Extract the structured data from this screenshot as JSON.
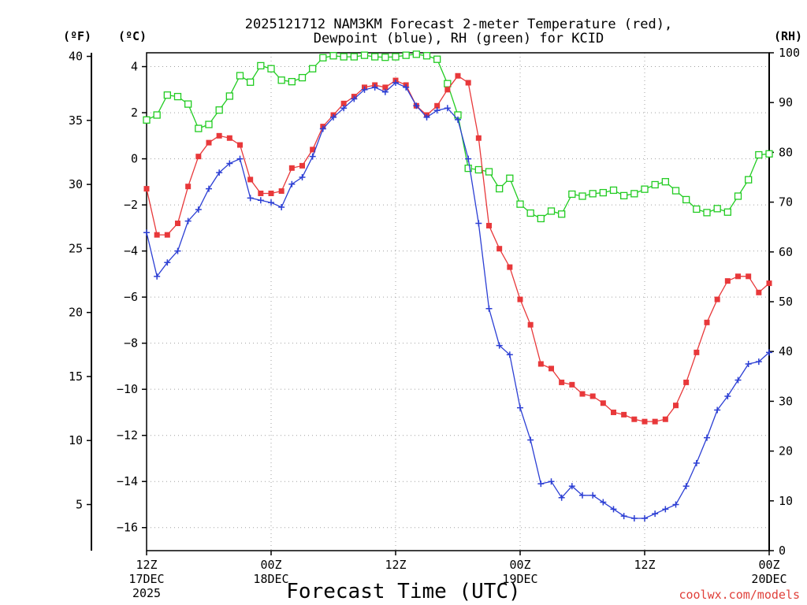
{
  "chart_data": {
    "type": "line",
    "title_line1": "2025121712 NAM3KM Forecast 2-meter Temperature (red),",
    "title_line2": "Dewpoint (blue), RH (green) for KCID",
    "unit_f": "(ºF)",
    "unit_c": "(ºC)",
    "unit_rh": "(RH)",
    "xlabel": "Forecast Time (UTC)",
    "credit": "coolwx.com/models",
    "x_range_hours": [
      0,
      60
    ],
    "y_c_range": [
      -17,
      4.6
    ],
    "y_rh_range": [
      0,
      100
    ],
    "y_f_range": [
      1.4,
      40.28
    ],
    "y_c_ticks": [
      "4",
      "2",
      "0",
      "-2",
      "-4",
      "-6",
      "-8",
      "-10",
      "-12",
      "-14",
      "-16"
    ],
    "y_c_tick_values": [
      4,
      2,
      0,
      -2,
      -4,
      -6,
      -8,
      -10,
      -12,
      -14,
      -16
    ],
    "y_f_ticks": [
      "40",
      "35",
      "30",
      "25",
      "20",
      "15",
      "10",
      "5"
    ],
    "y_f_tick_values": [
      40,
      35,
      30,
      25,
      20,
      15,
      10,
      5
    ],
    "y_rh_ticks": [
      "100",
      "90",
      "80",
      "70",
      "60",
      "50",
      "40",
      "30",
      "20",
      "10",
      "0"
    ],
    "y_rh_tick_values": [
      100,
      90,
      80,
      70,
      60,
      50,
      40,
      30,
      20,
      10,
      0
    ],
    "x_tick_hours": [
      0,
      12,
      24,
      36,
      48,
      60
    ],
    "x_ticks": [
      {
        "hour": 0,
        "line1": "12Z",
        "line2": "17DEC",
        "line3": "2025"
      },
      {
        "hour": 12,
        "line1": "00Z",
        "line2": "18DEC",
        "line3": ""
      },
      {
        "hour": 24,
        "line1": "12Z",
        "line2": "",
        "line3": ""
      },
      {
        "hour": 36,
        "line1": "00Z",
        "line2": "19DEC",
        "line3": ""
      },
      {
        "hour": 48,
        "line1": "12Z",
        "line2": "",
        "line3": ""
      },
      {
        "hour": 60,
        "line1": "00Z",
        "line2": "20DEC",
        "line3": ""
      }
    ],
    "series": [
      {
        "name": "2-meter Temperature",
        "unit": "C",
        "color": "#e8383a",
        "marker": "filled-square",
        "x": [
          0,
          1,
          2,
          3,
          4,
          5,
          6,
          7,
          8,
          9,
          10,
          11,
          12,
          13,
          14,
          15,
          16,
          17,
          18,
          19,
          20,
          21,
          22,
          23,
          24,
          25,
          26,
          27,
          28,
          29,
          30,
          31,
          32,
          33,
          34,
          35,
          36,
          37,
          38,
          39,
          40,
          41,
          42,
          43,
          44,
          45,
          46,
          47,
          48,
          49,
          50,
          51,
          52,
          53,
          54,
          55,
          56,
          57,
          58,
          59,
          60
        ],
        "values": [
          -1.3,
          -3.3,
          -3.3,
          -2.8,
          -1.2,
          0.1,
          0.7,
          1.0,
          0.9,
          0.6,
          -0.9,
          -1.5,
          -1.5,
          -1.4,
          -0.4,
          -0.3,
          0.4,
          1.4,
          1.9,
          2.4,
          2.7,
          3.1,
          3.2,
          3.1,
          3.4,
          3.2,
          2.3,
          1.9,
          2.3,
          3.0,
          3.6,
          3.3,
          0.9,
          -2.9,
          -3.9,
          -4.7,
          -6.1,
          -7.2,
          -8.9,
          -9.1,
          -9.7,
          -9.8,
          -10.2,
          -10.3,
          -10.6,
          -11.0,
          -11.1,
          -11.3,
          -11.4,
          -11.4,
          -11.3,
          -10.7,
          -9.7,
          -8.4,
          -7.1,
          -6.1,
          -5.3,
          -5.1,
          -5.1,
          -5.8,
          -5.4
        ]
      },
      {
        "name": "Dewpoint",
        "unit": "C",
        "color": "#2c3fd4",
        "marker": "plus",
        "x": [
          0,
          1,
          2,
          3,
          4,
          5,
          6,
          7,
          8,
          9,
          10,
          11,
          12,
          13,
          14,
          15,
          16,
          17,
          18,
          19,
          20,
          21,
          22,
          23,
          24,
          25,
          26,
          27,
          28,
          29,
          30,
          31,
          32,
          33,
          34,
          35,
          36,
          37,
          38,
          39,
          40,
          41,
          42,
          43,
          44,
          45,
          46,
          47,
          48,
          49,
          50,
          51,
          52,
          53,
          54,
          55,
          56,
          57,
          58,
          59,
          60
        ],
        "values": [
          -3.2,
          -5.1,
          -4.5,
          -4.0,
          -2.7,
          -2.2,
          -1.3,
          -0.6,
          -0.2,
          0.0,
          -1.7,
          -1.8,
          -1.9,
          -2.1,
          -1.1,
          -0.8,
          0.1,
          1.3,
          1.8,
          2.2,
          2.6,
          3.0,
          3.1,
          2.9,
          3.3,
          3.1,
          2.3,
          1.8,
          2.1,
          2.2,
          1.7,
          0.0,
          -2.8,
          -6.5,
          -8.1,
          -8.5,
          -10.8,
          -12.2,
          -14.1,
          -14.0,
          -14.7,
          -14.2,
          -14.6,
          -14.6,
          -14.9,
          -15.2,
          -15.5,
          -15.6,
          -15.6,
          -15.4,
          -15.2,
          -15.0,
          -14.2,
          -13.2,
          -12.1,
          -10.9,
          -10.3,
          -9.6,
          -8.9,
          -8.8,
          -8.4
        ]
      },
      {
        "name": "Relative Humidity",
        "unit": "%",
        "color": "#22cc22",
        "marker": "open-square",
        "x": [
          0,
          1,
          2,
          3,
          4,
          5,
          6,
          7,
          8,
          9,
          10,
          11,
          12,
          13,
          14,
          15,
          16,
          17,
          18,
          19,
          20,
          21,
          22,
          23,
          24,
          25,
          26,
          27,
          28,
          29,
          30,
          31,
          32,
          33,
          34,
          35,
          36,
          37,
          38,
          39,
          40,
          41,
          42,
          43,
          44,
          45,
          46,
          47,
          48,
          49,
          50,
          51,
          52,
          53,
          54,
          55,
          56,
          57,
          58,
          59,
          60
        ],
        "values": [
          86.5,
          87.5,
          91.5,
          91.2,
          89.7,
          84.8,
          85.6,
          88.5,
          91.3,
          95.4,
          94.1,
          97.4,
          96.8,
          94.5,
          94.2,
          95.0,
          96.8,
          99.0,
          99.4,
          99.2,
          99.2,
          99.5,
          99.2,
          99.1,
          99.2,
          99.5,
          99.7,
          99.4,
          98.7,
          93.8,
          87.5,
          76.8,
          76.5,
          76.1,
          72.7,
          74.8,
          69.6,
          67.8,
          66.7,
          68.2,
          67.6,
          71.6,
          71.2,
          71.7,
          71.9,
          72.4,
          71.3,
          71.7,
          72.6,
          73.5,
          74.1,
          72.3,
          70.5,
          68.6,
          67.9,
          68.7,
          68.0,
          71.2,
          74.5,
          79.5,
          79.7
        ]
      }
    ]
  }
}
